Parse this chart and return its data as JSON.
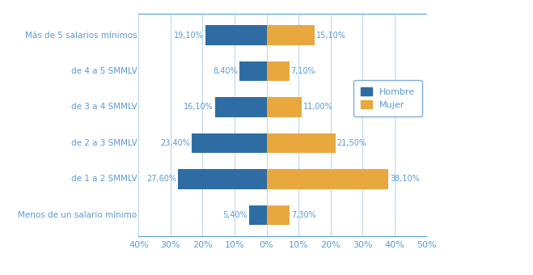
{
  "categories": [
    "Más de 5 salarios mínimos",
    "de 4 a 5 SMMLV",
    "de 3 a 4 SMMLV",
    "de 2 a 3 SMMLV",
    "de 1 a 2 SMMLV",
    "Menos de un salario mínimo"
  ],
  "hombre": [
    19.1,
    8.4,
    16.1,
    23.4,
    27.6,
    5.4
  ],
  "mujer": [
    15.1,
    7.1,
    11.0,
    21.5,
    38.1,
    7.3
  ],
  "hombre_labels": [
    "19,10%",
    "8,40%",
    "16,10%",
    "23,40%",
    "27,60%",
    "5,40%"
  ],
  "mujer_labels": [
    "15,10%",
    "7,10%",
    "11,00%",
    "21,50%",
    "38,10%",
    "7,30%"
  ],
  "hombre_color": "#2e6da4",
  "mujer_color": "#e8a83e",
  "label_color": "#5b9bd5",
  "legend_hombre": "Hombre",
  "legend_mujer": "Mujer",
  "xlim": [
    -40,
    50
  ],
  "xticks": [
    -40,
    -30,
    -20,
    -10,
    0,
    10,
    20,
    30,
    40,
    50
  ],
  "xticklabels": [
    "40%",
    "30%",
    "20%",
    "10%",
    "0%",
    "10%",
    "20%",
    "30%",
    "40%",
    "50%"
  ],
  "bar_height": 0.55,
  "figsize": [
    6.59,
    3.4
  ],
  "dpi": 100
}
